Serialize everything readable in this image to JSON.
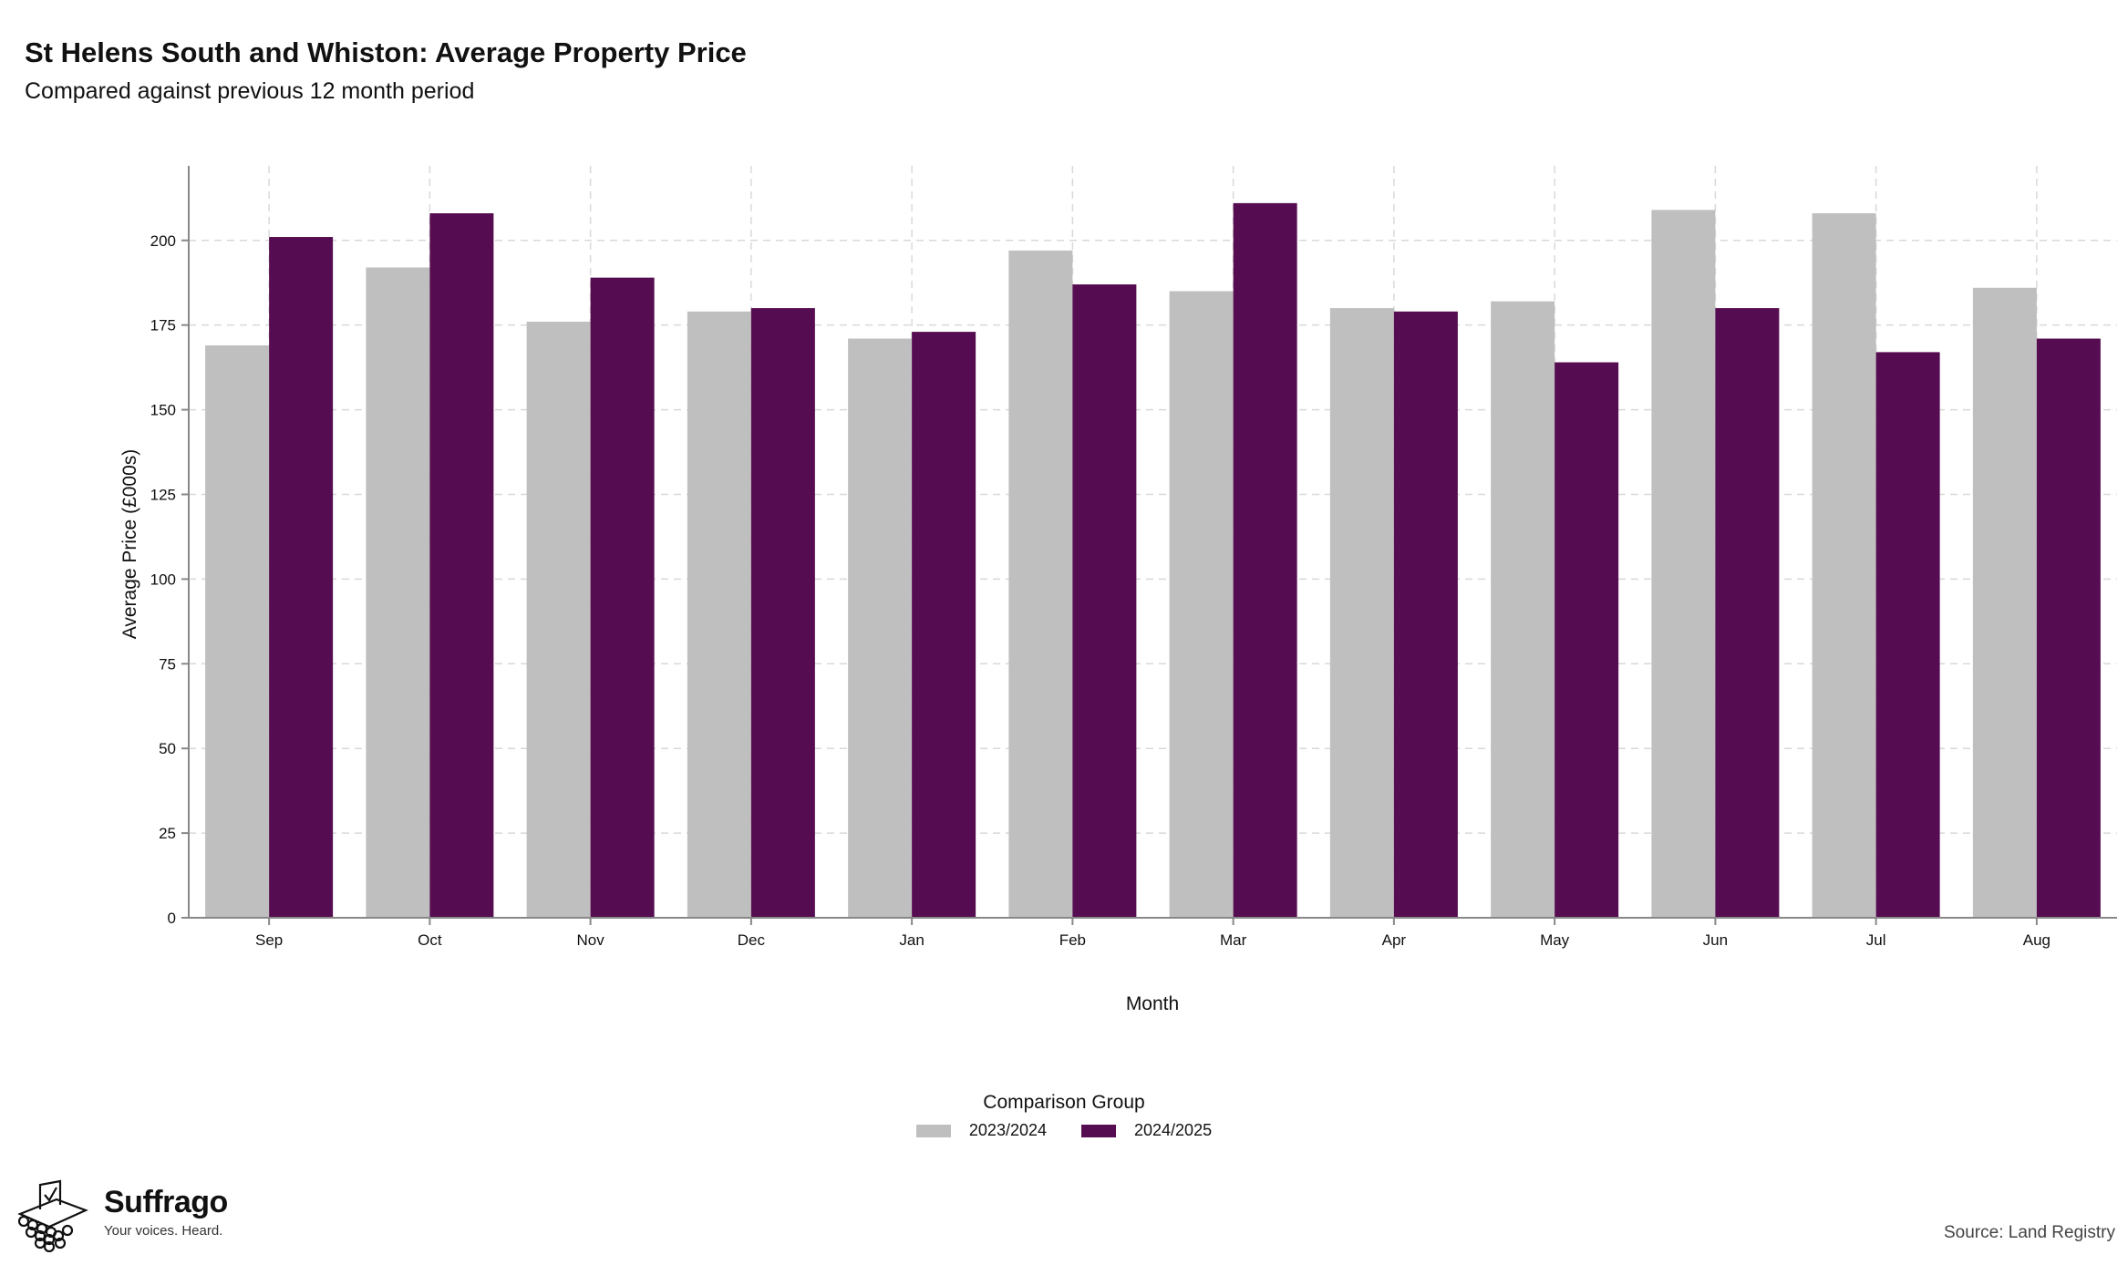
{
  "title": "St Helens South and Whiston: Average Property Price",
  "subtitle": "Compared against previous 12 month period",
  "legend": {
    "title": "Comparison Group",
    "items": [
      {
        "label": "2023/2024",
        "color": "#bfbfbf"
      },
      {
        "label": "2024/2025",
        "color": "#560c50"
      }
    ]
  },
  "brand": {
    "name": "Suffrago",
    "tagline": "Your voices. Heard.",
    "icon": "ballot-box-icon"
  },
  "source": "Source: Land Registry",
  "chart_data": {
    "type": "bar",
    "xlabel": "Month",
    "ylabel": "Average Price (£000s)",
    "ylim": [
      0,
      222
    ],
    "yticks": [
      0,
      25,
      50,
      75,
      100,
      125,
      150,
      175,
      200
    ],
    "grid": true,
    "legend_position": "bottom",
    "categories": [
      "Sep",
      "Oct",
      "Nov",
      "Dec",
      "Jan",
      "Feb",
      "Mar",
      "Apr",
      "May",
      "Jun",
      "Jul",
      "Aug"
    ],
    "series": [
      {
        "name": "2023/2024",
        "color": "#bfbfbf",
        "values": [
          169,
          192,
          176,
          179,
          171,
          197,
          185,
          180,
          182,
          209,
          208,
          186
        ]
      },
      {
        "name": "2024/2025",
        "color": "#560c50",
        "values": [
          201,
          208,
          189,
          180,
          173,
          187,
          211,
          179,
          164,
          180,
          167,
          171
        ]
      }
    ]
  }
}
